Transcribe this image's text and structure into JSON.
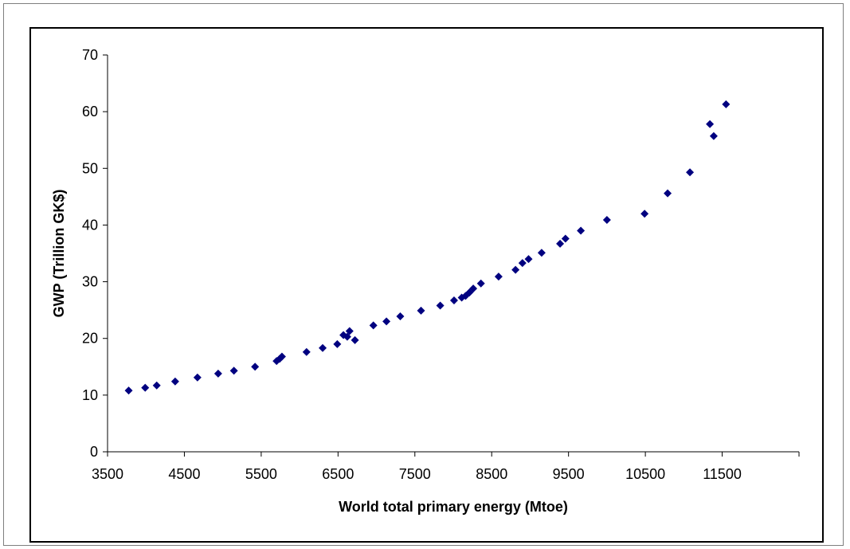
{
  "chart_data": {
    "type": "scatter",
    "title": "",
    "xlabel": "World total primary energy (Mtoe)",
    "ylabel": "GWP (Trillion GK$)",
    "xlim": [
      3500,
      12500
    ],
    "ylim": [
      0,
      70
    ],
    "xticks": [
      3500,
      4500,
      5500,
      6500,
      7500,
      8500,
      9500,
      10500,
      11500
    ],
    "yticks": [
      0,
      10,
      20,
      30,
      40,
      50,
      60,
      70
    ],
    "grid": false,
    "legend": "none",
    "marker_color": "#000080",
    "marker_shape": "diamond",
    "points": [
      [
        3775,
        10.8
      ],
      [
        3990,
        11.3
      ],
      [
        4140,
        11.7
      ],
      [
        4380,
        12.4
      ],
      [
        4670,
        13.1
      ],
      [
        4940,
        13.8
      ],
      [
        5145,
        14.3
      ],
      [
        5420,
        15.0
      ],
      [
        5700,
        16.0
      ],
      [
        5740,
        16.4
      ],
      [
        5770,
        16.8
      ],
      [
        6090,
        17.6
      ],
      [
        6300,
        18.3
      ],
      [
        6490,
        19.0
      ],
      [
        6570,
        20.6
      ],
      [
        6620,
        20.3
      ],
      [
        6650,
        21.3
      ],
      [
        6720,
        19.7
      ],
      [
        6960,
        22.3
      ],
      [
        7130,
        23.0
      ],
      [
        7310,
        23.9
      ],
      [
        7580,
        24.9
      ],
      [
        7830,
        25.8
      ],
      [
        8010,
        26.7
      ],
      [
        8110,
        27.2
      ],
      [
        8160,
        27.5
      ],
      [
        8210,
        28.1
      ],
      [
        8260,
        28.8
      ],
      [
        8360,
        29.7
      ],
      [
        8590,
        30.9
      ],
      [
        8810,
        32.1
      ],
      [
        8900,
        33.3
      ],
      [
        8980,
        34.0
      ],
      [
        9150,
        35.1
      ],
      [
        9390,
        36.7
      ],
      [
        9460,
        37.6
      ],
      [
        9660,
        39.0
      ],
      [
        10000,
        40.9
      ],
      [
        10490,
        42.0
      ],
      [
        10790,
        45.6
      ],
      [
        11080,
        49.3
      ],
      [
        11340,
        57.8
      ],
      [
        11390,
        55.7
      ],
      [
        11550,
        61.3
      ]
    ]
  }
}
